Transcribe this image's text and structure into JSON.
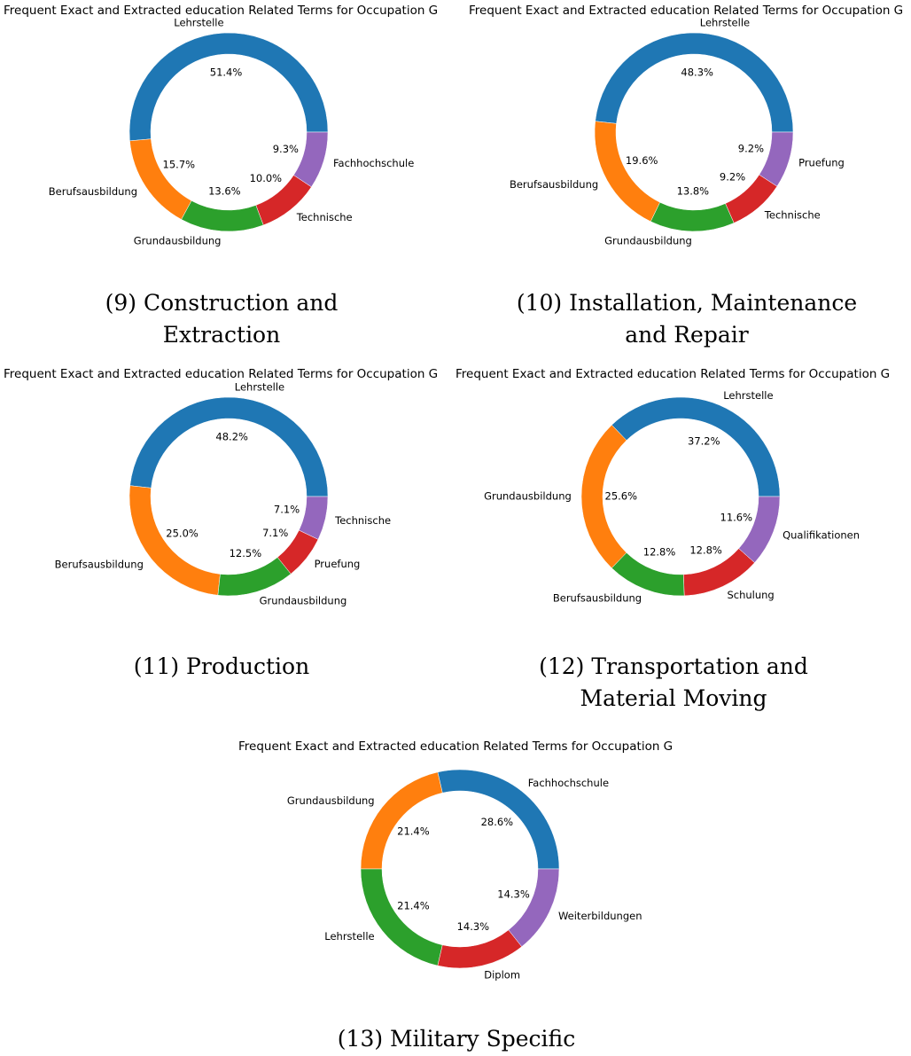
{
  "chart_data": [
    {
      "type": "pie",
      "title": "Frequent Exact and Extracted education Related Terms for Occupation G",
      "caption": "(9) Construction and Extraction",
      "categories": [
        "Lehrstelle",
        "Berufsausbildung",
        "Grundausbildung",
        "Technische",
        "Fachhochschule"
      ],
      "values": [
        51.4,
        15.7,
        13.6,
        10.0,
        9.3
      ],
      "value_labels": [
        "51.4%",
        "15.7%",
        "13.6%",
        "10.0%",
        "9.3%"
      ],
      "colors": [
        "#1f77b4",
        "#ff7f0e",
        "#2ca02c",
        "#d62728",
        "#9467bd"
      ]
    },
    {
      "type": "pie",
      "title": "Frequent Exact and Extracted education Related Terms for Occupation G",
      "caption": "(10) Installation, Maintenance and Repair",
      "categories": [
        "Lehrstelle",
        "Berufsausbildung",
        "Grundausbildung",
        "Technische",
        "Pruefung"
      ],
      "values": [
        48.3,
        19.6,
        13.8,
        9.2,
        9.2
      ],
      "value_labels": [
        "48.3%",
        "19.6%",
        "13.8%",
        "9.2%",
        "9.2%"
      ],
      "colors": [
        "#1f77b4",
        "#ff7f0e",
        "#2ca02c",
        "#d62728",
        "#9467bd"
      ]
    },
    {
      "type": "pie",
      "title": "Frequent Exact and Extracted education Related Terms for Occupation G",
      "caption": "(11) Production",
      "categories": [
        "Lehrstelle",
        "Berufsausbildung",
        "Grundausbildung",
        "Pruefung",
        "Technische"
      ],
      "values": [
        48.2,
        25.0,
        12.5,
        7.1,
        7.1
      ],
      "value_labels": [
        "48.2%",
        "25.0%",
        "12.5%",
        "7.1%",
        "7.1%"
      ],
      "colors": [
        "#1f77b4",
        "#ff7f0e",
        "#2ca02c",
        "#d62728",
        "#9467bd"
      ]
    },
    {
      "type": "pie",
      "title": "Frequent Exact and Extracted education Related Terms for Occupation G",
      "caption": "(12) Transportation and Material Moving",
      "categories": [
        "Lehrstelle",
        "Grundausbildung",
        "Berufsausbildung",
        "Schulung",
        "Qualifikationen"
      ],
      "values": [
        37.2,
        25.6,
        12.8,
        12.8,
        11.6
      ],
      "value_labels": [
        "37.2%",
        "25.6%",
        "12.8%",
        "12.8%",
        "11.6%"
      ],
      "colors": [
        "#1f77b4",
        "#ff7f0e",
        "#2ca02c",
        "#d62728",
        "#9467bd"
      ]
    },
    {
      "type": "pie",
      "title": "Frequent Exact and Extracted education Related Terms for Occupation G",
      "caption": "(13) Military Specific",
      "categories": [
        "Fachhochschule",
        "Grundausbildung",
        "Lehrstelle",
        "Diplom",
        "Weiterbildungen"
      ],
      "values": [
        28.6,
        21.4,
        21.4,
        14.3,
        14.3
      ],
      "value_labels": [
        "28.6%",
        "21.4%",
        "21.4%",
        "14.3%",
        "14.3%"
      ],
      "colors": [
        "#1f77b4",
        "#ff7f0e",
        "#2ca02c",
        "#d62728",
        "#9467bd"
      ]
    }
  ]
}
